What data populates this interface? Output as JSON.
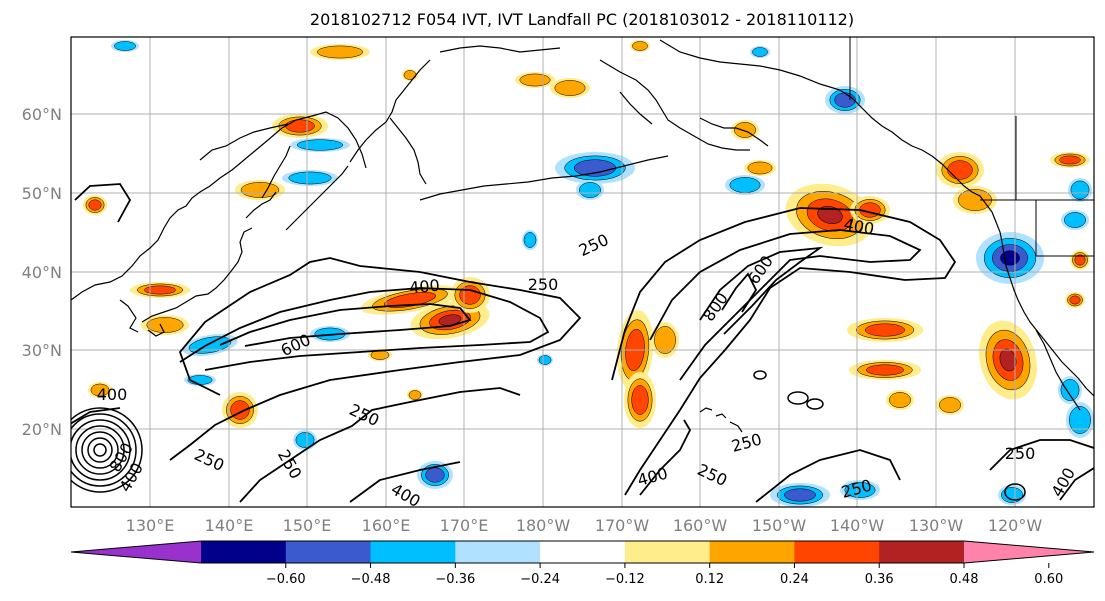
{
  "title": "2018102712 F054 IVT, IVT Landfall PC (2018103012 - 2018110112)",
  "map": {
    "lat_labels": [
      "20°N",
      "30°N",
      "40°N",
      "50°N",
      "60°N"
    ],
    "lon_labels": [
      "130°E",
      "140°E",
      "150°E",
      "160°E",
      "170°E",
      "180°W",
      "170°W",
      "160°W",
      "150°W",
      "140°W",
      "130°W",
      "120°W"
    ],
    "grid": true,
    "colors": {
      "coast": "#000000",
      "contour": "#000000",
      "grid": "#b0b0b0"
    },
    "contour_labels": [
      {
        "text": "400"
      },
      {
        "text": "250"
      },
      {
        "text": "600"
      },
      {
        "text": "250"
      },
      {
        "text": "400"
      },
      {
        "text": "250"
      },
      {
        "text": "600"
      },
      {
        "text": "800"
      },
      {
        "text": "400"
      },
      {
        "text": "250"
      },
      {
        "text": "400"
      },
      {
        "text": "250"
      },
      {
        "text": "400"
      },
      {
        "text": "250"
      },
      {
        "text": "250"
      },
      {
        "text": "250"
      },
      {
        "text": "400"
      },
      {
        "text": "250"
      },
      {
        "text": "400"
      },
      {
        "text": "800"
      }
    ]
  },
  "colorbar": {
    "ticks": [
      "−0.60",
      "−0.48",
      "−0.36",
      "−0.24",
      "−0.12",
      "0.12",
      "0.24",
      "0.36",
      "0.48",
      "0.60"
    ],
    "colors": [
      "#9932cc",
      "#00008b",
      "#3a5bcd",
      "#00bfff",
      "#b0e2ff",
      "#ffffff",
      "#ffec8b",
      "#ffa500",
      "#ff4500",
      "#b22222",
      "#ff82ab"
    ]
  }
}
